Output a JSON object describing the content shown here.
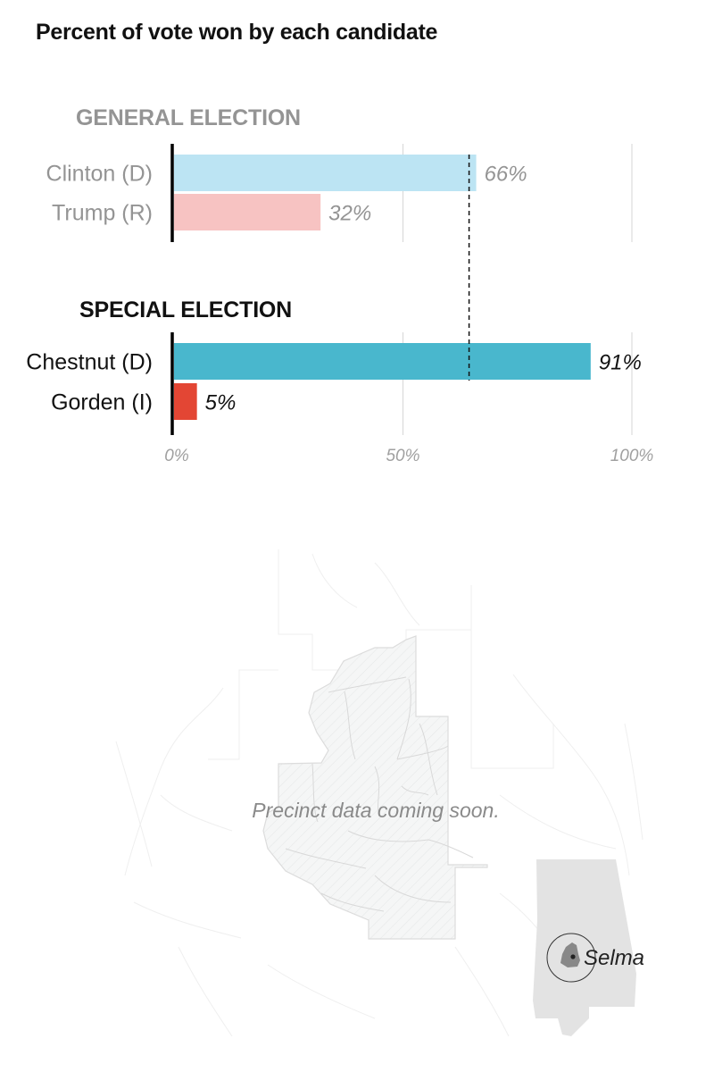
{
  "chart_data": {
    "type": "bar",
    "title": "Percent of vote won by each candidate",
    "xlabel": "",
    "ylabel": "",
    "xlim": [
      0,
      100
    ],
    "ticks": [
      {
        "value": 0,
        "label": "0%"
      },
      {
        "value": 50,
        "label": "50%"
      },
      {
        "value": 100,
        "label": "100%"
      }
    ],
    "grid": true,
    "reference_line": {
      "value": 66,
      "style": "dashed"
    },
    "groups": [
      {
        "name": "GENERAL ELECTION",
        "muted": true,
        "bars": [
          {
            "label": "Clinton (D)",
            "value": 66,
            "value_label": "66%",
            "color": "#bce4f3"
          },
          {
            "label": "Trump (R)",
            "value": 32,
            "value_label": "32%",
            "color": "#f7c3c2"
          }
        ]
      },
      {
        "name": "SPECIAL ELECTION",
        "muted": false,
        "bars": [
          {
            "label": "Chestnut (D)",
            "value": 91,
            "value_label": "91%",
            "color": "#49b7cd"
          },
          {
            "label": "Gorden (I)",
            "value": 5,
            "value_label": "5%",
            "color": "#e34634"
          }
        ]
      }
    ]
  },
  "colors": {
    "muted_text": "#949494",
    "strong_text": "#111111",
    "gridline": "#d6d6d6",
    "map_fill": "#f4f5f5",
    "state_fill": "#e3e3e3",
    "county_fill": "#8a8a8a"
  },
  "map": {
    "note": "Precinct data coming soon.",
    "inset_label": "Selma"
  }
}
